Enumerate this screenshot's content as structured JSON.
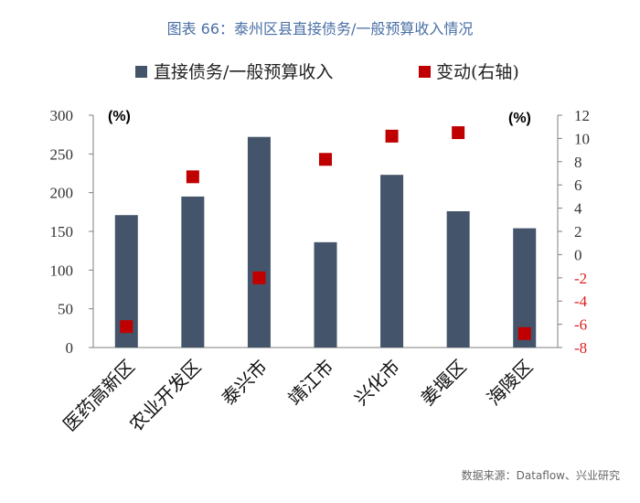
{
  "page": {
    "title": "图表 66：泰州区县直接债务/一般预算收入情况",
    "source": "数据来源：Dataflow、兴业研究"
  },
  "colors": {
    "bar": "#44546a",
    "marker": "#c00000",
    "title": "#4a6fa5",
    "negative_tick": "#e02020",
    "axis": "#7f7f7f"
  },
  "chart_data": {
    "type": "bar",
    "categories": [
      "医药高新区",
      "农业开发区",
      "泰兴市",
      "靖江市",
      "兴化市",
      "姜堰区",
      "海陵区"
    ],
    "series": [
      {
        "name": "直接债务/一般预算收入",
        "type": "bar",
        "axis": "left",
        "values": [
          171,
          195,
          272,
          136,
          223,
          176,
          154
        ]
      },
      {
        "name": "变动(右轴)",
        "type": "scatter",
        "axis": "right",
        "values": [
          -6.2,
          6.7,
          -2.0,
          8.2,
          10.2,
          10.5,
          -6.8
        ]
      }
    ],
    "y_left": {
      "unit": "(%)",
      "ylim": [
        0,
        300
      ],
      "ticks": [
        0,
        50,
        100,
        150,
        200,
        250,
        300
      ]
    },
    "y_right": {
      "unit": "(%)",
      "ylim": [
        -8,
        12
      ],
      "ticks": [
        -8,
        -6,
        -4,
        -2,
        0,
        2,
        4,
        6,
        8,
        10,
        12
      ]
    },
    "legend_position": "top",
    "grid": false
  }
}
